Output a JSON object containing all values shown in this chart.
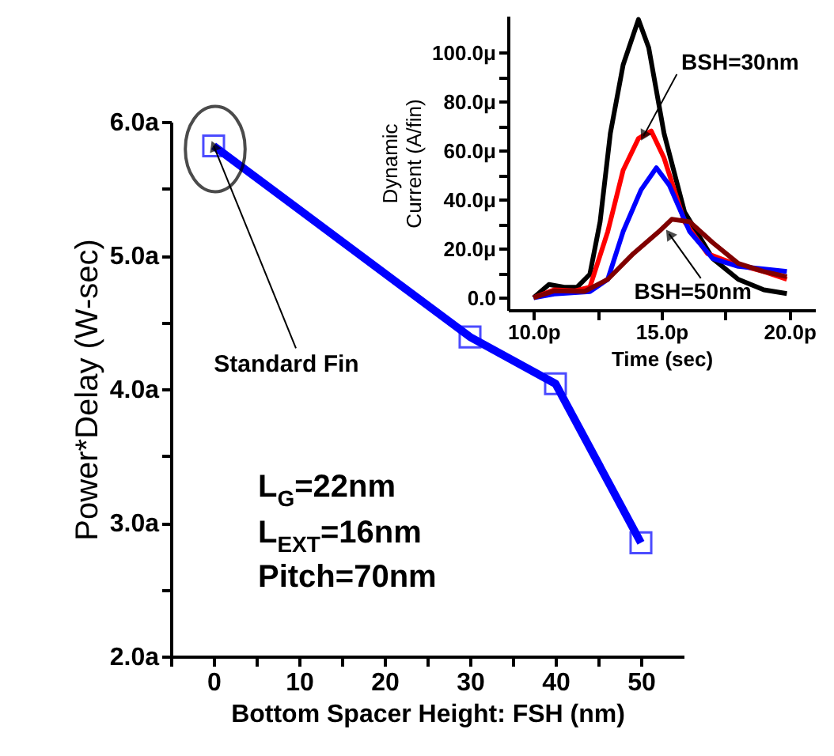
{
  "chart_data": [
    {
      "type": "line",
      "xlabel": "Bottom Spacer Height: FSH (nm)",
      "ylabel": "Power*Delay (W-sec)",
      "x": [
        0,
        30,
        40,
        50
      ],
      "series": [
        {
          "color": "#0000ff",
          "values": [
            5.82,
            4.39,
            4.04,
            2.85
          ]
        }
      ],
      "marker": "square",
      "line_style": "solid",
      "grid": false,
      "xlim": [
        -5,
        55
      ],
      "xticks": [
        {
          "value": -5,
          "label": null
        },
        0,
        {
          "value": 5,
          "label": null
        },
        10,
        {
          "value": 15,
          "label": null
        },
        20,
        {
          "value": 25,
          "label": null
        },
        30,
        {
          "value": 35,
          "label": null
        },
        40,
        {
          "value": 45,
          "label": null
        },
        50
      ],
      "ylim": [
        2,
        6
      ],
      "yticks": [
        {
          "value": 2,
          "label": "2.0a"
        },
        {
          "value": 2.5,
          "label": null
        },
        {
          "value": 3,
          "label": "3.0a"
        },
        {
          "value": 3.5,
          "label": null
        },
        {
          "value": 4,
          "label": "4.0a"
        },
        {
          "value": 4.5,
          "label": null
        },
        {
          "value": 5,
          "label": "5.0a"
        },
        {
          "value": 5.5,
          "label": null
        },
        {
          "value": 6,
          "label": "6.0a"
        }
      ],
      "annotations": [
        {
          "text": "Standard Fin",
          "x": 0,
          "y": 5.82
        },
        "L$_{G}$=22nm",
        "L$_{EXT}$=16nm",
        "Pitch=70nm"
      ]
    },
    {
      "type": "line",
      "xlabel": "Time (sec)",
      "ylabel": "Dynamic Current (A/fin)",
      "grid": false,
      "marker": "none",
      "series": [
        {
          "color": "#000000",
          "x": [
            10,
            10.6,
            11.2,
            11.7,
            12.2,
            12.6,
            13.0,
            13.5,
            14.1,
            14.5,
            15.1,
            15.9,
            17.0,
            18.0,
            19.0,
            19.9
          ],
          "values": [
            0,
            5.4,
            4.3,
            4.3,
            9.6,
            31,
            67,
            95,
            113.5,
            102,
            67,
            35,
            16,
            7.5,
            3.2,
            1.7
          ]
        },
        {
          "color": "#ff0000",
          "x": [
            10,
            10.8,
            11.6,
            12.2,
            12.9,
            13.5,
            14.1,
            14.6,
            15.1,
            15.9,
            16.8,
            17.8,
            19.0,
            19.9
          ],
          "values": [
            0,
            3.2,
            2.8,
            4.3,
            27,
            52,
            65,
            68,
            57,
            31,
            18,
            14,
            10.7,
            7.5
          ]
        },
        {
          "color": "#0000ff",
          "x": [
            10,
            10.8,
            12.2,
            12.9,
            13.5,
            14.2,
            14.8,
            15.3,
            16.1,
            17.0,
            18.0,
            19.9
          ],
          "values": [
            0,
            1.5,
            2.5,
            7.5,
            27,
            44,
            53,
            46,
            27,
            16,
            12.8,
            10.7
          ]
        },
        {
          "color": "#800000",
          "x": [
            10,
            10.8,
            12.0,
            12.9,
            13.9,
            14.9,
            15.4,
            16.1,
            17.0,
            18.0,
            19.0,
            19.9
          ],
          "values": [
            0,
            2.8,
            2.6,
            7.5,
            18,
            27,
            32,
            31,
            22.5,
            14,
            10.7,
            8.6
          ]
        }
      ],
      "xlim": [
        9,
        21
      ],
      "xticks": [
        {
          "value": 10,
          "label": "10.0p"
        },
        {
          "value": 12.5,
          "label": null
        },
        {
          "value": 15,
          "label": "15.0p"
        },
        {
          "value": 17.5,
          "label": null
        },
        {
          "value": 20,
          "label": "20.0p"
        }
      ],
      "ylim": [
        -5,
        115
      ],
      "yticks": [
        {
          "value": 0,
          "label": "0.0"
        },
        {
          "value": 10,
          "label": null
        },
        {
          "value": 20,
          "label": "20.0μ"
        },
        {
          "value": 30,
          "label": null
        },
        {
          "value": 40,
          "label": "40.0μ"
        },
        {
          "value": 50,
          "label": null
        },
        {
          "value": 60,
          "label": "60.0μ"
        },
        {
          "value": 70,
          "label": null
        },
        {
          "value": 80,
          "label": "80.0μ"
        },
        {
          "value": 90,
          "label": null
        },
        {
          "value": 100,
          "label": "100.0μ"
        }
      ],
      "annotations": [
        {
          "text": "BSH=30nm",
          "x": 14.3,
          "y": 66
        },
        {
          "text": "BSH=50nm",
          "x": 15.3,
          "y": 26
        }
      ]
    }
  ]
}
